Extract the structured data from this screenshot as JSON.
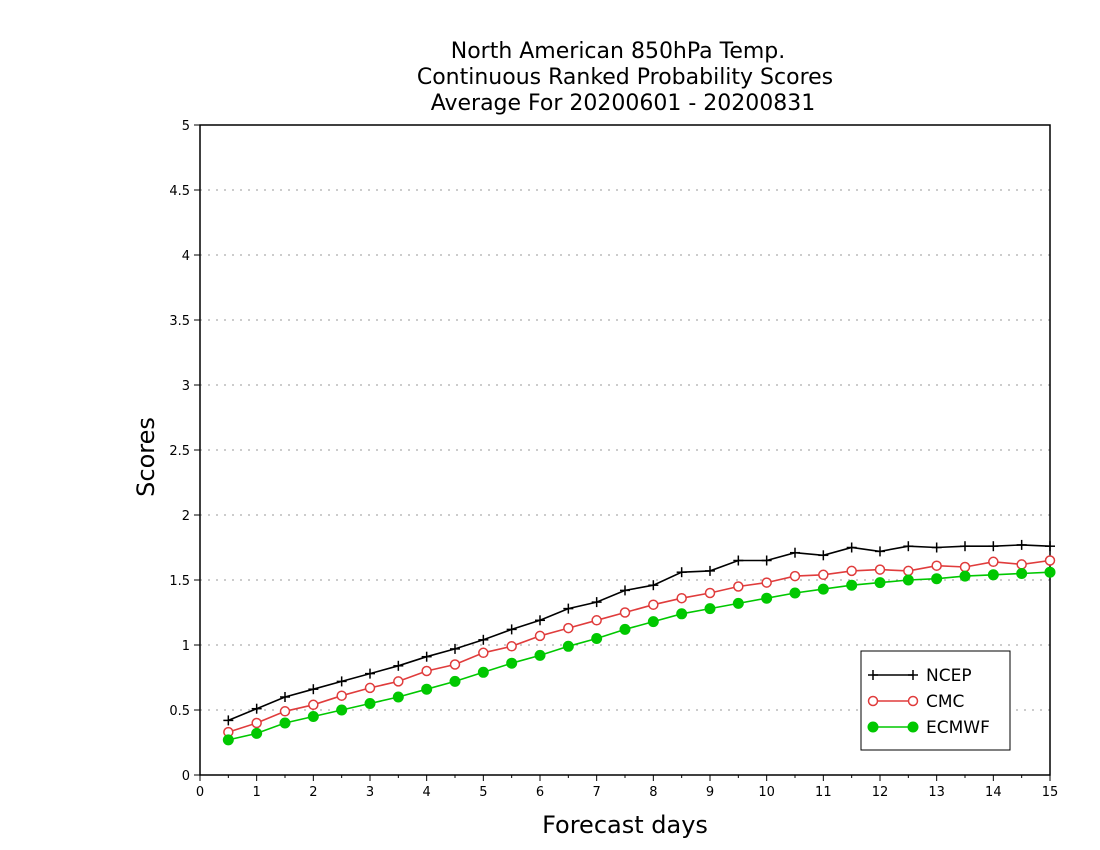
{
  "chart_data": {
    "type": "line",
    "title": [
      "North American 850hPa Temp.",
      "Continuous Ranked Probability Scores",
      "Average For 20200601 - 20200831"
    ],
    "xlabel": "Forecast days",
    "ylabel": "Scores",
    "xlim": [
      0,
      15
    ],
    "ylim": [
      0,
      5
    ],
    "xticks": [
      "0",
      "1",
      "2",
      "3",
      "4",
      "5",
      "6",
      "7",
      "8",
      "9",
      "10",
      "11",
      "12",
      "13",
      "14",
      "15"
    ],
    "yticks": [
      "0",
      "0.5",
      "1",
      "1.5",
      "2",
      "2.5",
      "3",
      "3.5",
      "4",
      "4.5",
      "5"
    ],
    "grid": true,
    "legend_position": "bottom-right",
    "x": [
      0.5,
      1,
      1.5,
      2,
      2.5,
      3,
      3.5,
      4,
      4.5,
      5,
      5.5,
      6,
      6.5,
      7,
      7.5,
      8,
      8.5,
      9,
      9.5,
      10,
      10.5,
      11,
      11.5,
      12,
      12.5,
      13,
      13.5,
      14,
      14.5,
      15
    ],
    "series": [
      {
        "name": "NCEP",
        "color": "#000000",
        "marker": "plus",
        "values": [
          0.42,
          0.51,
          0.6,
          0.66,
          0.72,
          0.78,
          0.84,
          0.91,
          0.97,
          1.04,
          1.12,
          1.19,
          1.28,
          1.33,
          1.42,
          1.46,
          1.56,
          1.57,
          1.65,
          1.65,
          1.71,
          1.69,
          1.75,
          1.72,
          1.76,
          1.75,
          1.76,
          1.76,
          1.77,
          1.76
        ]
      },
      {
        "name": "CMC",
        "color": "#e03c3c",
        "marker": "open-circle",
        "values": [
          0.33,
          0.4,
          0.49,
          0.54,
          0.61,
          0.67,
          0.72,
          0.8,
          0.85,
          0.94,
          0.99,
          1.07,
          1.13,
          1.19,
          1.25,
          1.31,
          1.36,
          1.4,
          1.45,
          1.48,
          1.53,
          1.54,
          1.57,
          1.58,
          1.57,
          1.61,
          1.6,
          1.64,
          1.62,
          1.65
        ]
      },
      {
        "name": "ECMWF",
        "color": "#00c800",
        "marker": "filled-circle",
        "values": [
          0.27,
          0.32,
          0.4,
          0.45,
          0.5,
          0.55,
          0.6,
          0.66,
          0.72,
          0.79,
          0.86,
          0.92,
          0.99,
          1.05,
          1.12,
          1.18,
          1.24,
          1.28,
          1.32,
          1.36,
          1.4,
          1.43,
          1.46,
          1.48,
          1.5,
          1.51,
          1.53,
          1.54,
          1.55,
          1.56
        ]
      }
    ]
  }
}
